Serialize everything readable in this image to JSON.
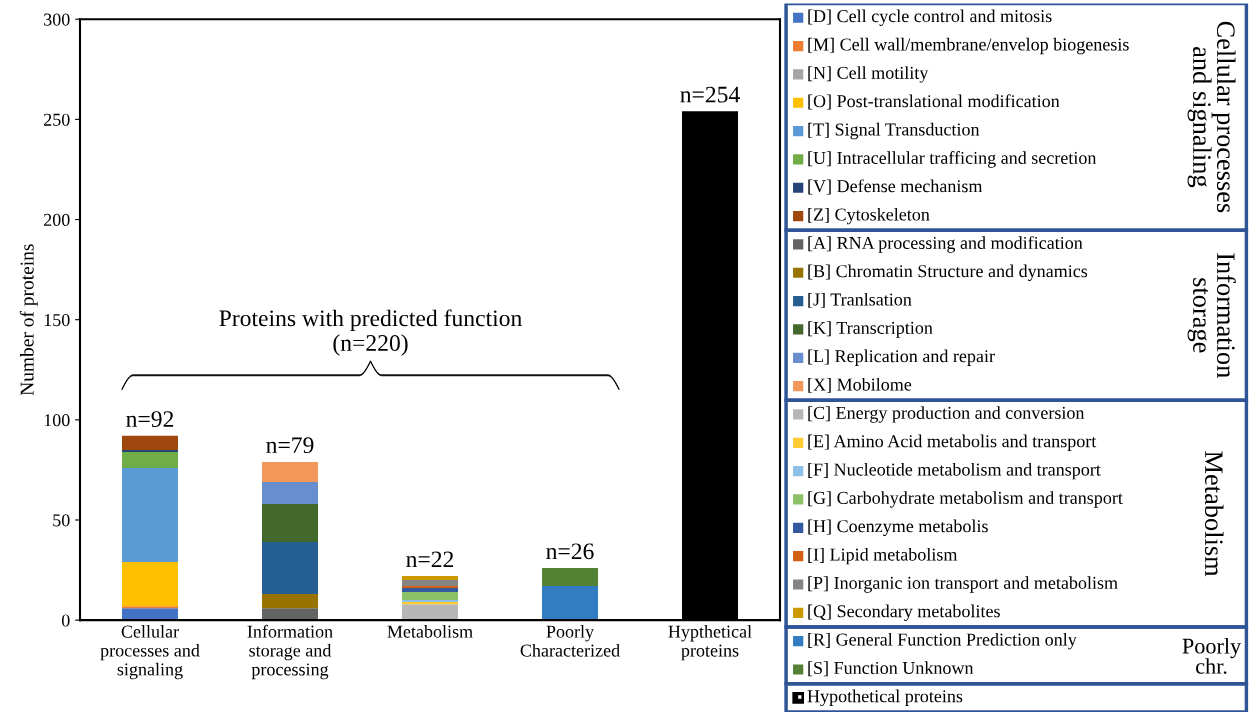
{
  "chart_data": {
    "type": "bar",
    "stacked": true,
    "ylabel": "Number of proteins",
    "categories": [
      "Cellular\nprocesses and\nsignaling",
      "Information\nstorage and\nprocessing",
      "Metabolism",
      "Poorly\nCharacterized",
      "Hypthetical\nproteins"
    ],
    "ylim": [
      0,
      300
    ],
    "yticks": [
      0,
      50,
      100,
      150,
      200,
      250,
      300
    ],
    "grid": false,
    "legend": "right",
    "totals": [
      "n=92",
      "n=79",
      "n=22",
      "n=26",
      "n=254"
    ],
    "annotations": [
      "Proteins with predicted function\n(n=220)",
      "Cellular processes\nand signaling",
      "Information\nstorage",
      "Metabolism",
      "Poorly\nchr."
    ],
    "series": [
      {
        "name": "[D] Cell cycle control and mitosis",
        "color": "#4472c4",
        "values": [
          6,
          null,
          null,
          null,
          null
        ]
      },
      {
        "name": "[M] Cell wall/membrane/envelop biogenesis",
        "color": "#ed7d31",
        "values": [
          1,
          null,
          null,
          null,
          null
        ]
      },
      {
        "name": "[N] Cell motility",
        "color": "#a5a5a5",
        "values": [
          0,
          null,
          null,
          null,
          null
        ]
      },
      {
        "name": "[O] Post-translational modification",
        "color": "#ffc000",
        "values": [
          22,
          null,
          null,
          null,
          null
        ]
      },
      {
        "name": "[T] Signal Transduction",
        "color": "#5b9bd5",
        "values": [
          47,
          null,
          null,
          null,
          null
        ]
      },
      {
        "name": "[U] Intracellular trafficing and secretion",
        "color": "#70ad47",
        "values": [
          8,
          null,
          null,
          null,
          null
        ]
      },
      {
        "name": "[V] Defense mechanism",
        "color": "#264478",
        "values": [
          1,
          null,
          null,
          null,
          null
        ]
      },
      {
        "name": "[Z] Cytoskeleton",
        "color": "#9e480e",
        "values": [
          7,
          null,
          null,
          null,
          null
        ]
      },
      {
        "name": "[A] RNA processing and modification",
        "color": "#636363",
        "values": [
          null,
          6,
          null,
          null,
          null
        ]
      },
      {
        "name": "[B] Chromatin Structure and dynamics",
        "color": "#997300",
        "values": [
          null,
          7,
          null,
          null,
          null
        ]
      },
      {
        "name": "[J] Tranlsation",
        "color": "#255e91",
        "values": [
          null,
          26,
          null,
          null,
          null
        ]
      },
      {
        "name": "[K] Transcription",
        "color": "#43682b",
        "values": [
          null,
          19,
          null,
          null,
          null
        ]
      },
      {
        "name": "[L] Replication and repair",
        "color": "#698ed0",
        "values": [
          null,
          11,
          null,
          null,
          null
        ]
      },
      {
        "name": "[X] Mobilome",
        "color": "#f1975a",
        "values": [
          null,
          10,
          null,
          null,
          null
        ]
      },
      {
        "name": "[C] Energy production and conversion",
        "color": "#b7b7b7",
        "values": [
          null,
          null,
          8,
          null,
          null
        ]
      },
      {
        "name": "[E] Amino Acid metabolis and transport",
        "color": "#ffcd33",
        "values": [
          null,
          null,
          1,
          null,
          null
        ]
      },
      {
        "name": "[F] Nucleotide metabolism and transport",
        "color": "#8cc2e8",
        "values": [
          null,
          null,
          1,
          null,
          null
        ]
      },
      {
        "name": "[G] Carbohydrate metabolism and transport",
        "color": "#8cc168",
        "values": [
          null,
          null,
          4,
          null,
          null
        ]
      },
      {
        "name": "[H] Coenzyme metabolis",
        "color": "#335aa1",
        "values": [
          null,
          null,
          2,
          null,
          null
        ]
      },
      {
        "name": "[I] Lipid metabolism",
        "color": "#d26012",
        "values": [
          null,
          null,
          1,
          null,
          null
        ]
      },
      {
        "name": "[P] Inorganic ion transport and metabolism",
        "color": "#848484",
        "values": [
          null,
          null,
          3,
          null,
          null
        ]
      },
      {
        "name": "[Q] Secondary metabolites",
        "color": "#cc9a00",
        "values": [
          null,
          null,
          2,
          null,
          null
        ]
      },
      {
        "name": "[R] General Function Prediction only",
        "color": "#327dc2",
        "values": [
          null,
          null,
          null,
          17,
          null
        ]
      },
      {
        "name": "[S] Function Unknown",
        "color": "#548235",
        "values": [
          null,
          null,
          null,
          9,
          null
        ]
      },
      {
        "name": "Hypothetical proteins",
        "color": "#000000",
        "values": [
          null,
          null,
          null,
          null,
          254
        ]
      }
    ]
  }
}
